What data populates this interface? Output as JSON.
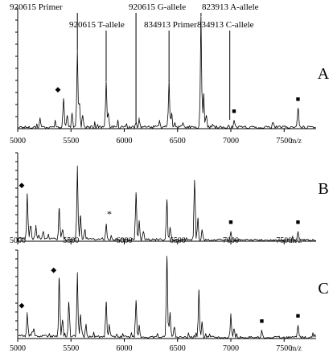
{
  "annotations": [
    {
      "text": "920615 Primer",
      "mz": 5560
    },
    {
      "text": "920615 T-allele",
      "mz": 5830
    },
    {
      "text": "920615 G-allele",
      "mz": 6110
    },
    {
      "text": "834913 Primer",
      "mz": 6420
    },
    {
      "text": "823913  A-allele",
      "mz": 6720
    },
    {
      "text": "834913 C-allele",
      "mz": 6990
    }
  ],
  "chart_data": [
    {
      "type": "line",
      "panel": "A",
      "x_unit": "m/z",
      "xlim": [
        5000,
        7800
      ],
      "x_ticks": [
        "5000",
        "5500",
        "6000",
        "6500",
        "7000",
        "7500"
      ],
      "y_axis_labels": "none",
      "peaks": [
        {
          "mz": 5210,
          "rel": 0.08
        },
        {
          "mz": 5430,
          "rel": 0.24
        },
        {
          "mz": 5465,
          "rel": 0.1
        },
        {
          "mz": 5510,
          "rel": 0.12
        },
        {
          "mz": 5560,
          "rel": 0.64
        },
        {
          "mz": 5580,
          "rel": 0.2
        },
        {
          "mz": 5610,
          "rel": 0.1
        },
        {
          "mz": 5830,
          "rel": 0.38
        },
        {
          "mz": 5850,
          "rel": 0.12
        },
        {
          "mz": 6110,
          "rel": 0.04
        },
        {
          "mz": 6140,
          "rel": 0.06
        },
        {
          "mz": 6330,
          "rel": 0.06
        },
        {
          "mz": 6420,
          "rel": 0.38
        },
        {
          "mz": 6445,
          "rel": 0.12
        },
        {
          "mz": 6550,
          "rel": 0.04
        },
        {
          "mz": 6720,
          "rel": 0.92
        },
        {
          "mz": 6745,
          "rel": 0.28
        },
        {
          "mz": 6770,
          "rel": 0.1
        },
        {
          "mz": 7030,
          "rel": 0.06
        },
        {
          "mz": 7630,
          "rel": 0.16
        }
      ],
      "markers": [
        {
          "symbol": "◆",
          "mz": 5430
        },
        {
          "symbol": "■",
          "mz": 7030
        },
        {
          "symbol": "■",
          "mz": 7630
        }
      ]
    },
    {
      "type": "line",
      "panel": "B",
      "x_unit": "m/z",
      "xlim": [
        5000,
        7800
      ],
      "x_ticks": [
        "5000",
        "5500",
        "6000",
        "6500",
        "7000",
        "7500"
      ],
      "y_axis_labels": "none",
      "peaks": [
        {
          "mz": 5090,
          "rel": 0.52
        },
        {
          "mz": 5120,
          "rel": 0.16
        },
        {
          "mz": 5170,
          "rel": 0.14
        },
        {
          "mz": 5240,
          "rel": 0.1
        },
        {
          "mz": 5390,
          "rel": 0.36
        },
        {
          "mz": 5420,
          "rel": 0.12
        },
        {
          "mz": 5560,
          "rel": 0.82
        },
        {
          "mz": 5590,
          "rel": 0.28
        },
        {
          "mz": 5630,
          "rel": 0.12
        },
        {
          "mz": 5830,
          "rel": 0.18
        },
        {
          "mz": 6110,
          "rel": 0.54
        },
        {
          "mz": 6140,
          "rel": 0.22
        },
        {
          "mz": 6180,
          "rel": 0.1
        },
        {
          "mz": 6400,
          "rel": 0.46
        },
        {
          "mz": 6430,
          "rel": 0.14
        },
        {
          "mz": 6660,
          "rel": 0.68
        },
        {
          "mz": 6690,
          "rel": 0.24
        },
        {
          "mz": 6730,
          "rel": 0.12
        },
        {
          "mz": 7000,
          "rel": 0.1
        },
        {
          "mz": 7630,
          "rel": 0.1
        }
      ],
      "markers": [
        {
          "symbol": "◆",
          "mz": 5090
        },
        {
          "symbol": "*",
          "mz": 5860
        },
        {
          "symbol": "■",
          "mz": 7000
        },
        {
          "symbol": "■",
          "mz": 7630
        }
      ]
    },
    {
      "type": "line",
      "panel": "C",
      "x_unit": "m/z",
      "xlim": [
        5000,
        7800
      ],
      "x_ticks": [
        "5000",
        "5500",
        "6000",
        "6500",
        "7000",
        "7500"
      ],
      "y_axis_labels": "none",
      "peaks": [
        {
          "mz": 5090,
          "rel": 0.26
        },
        {
          "mz": 5150,
          "rel": 0.1
        },
        {
          "mz": 5390,
          "rel": 0.66
        },
        {
          "mz": 5420,
          "rel": 0.2
        },
        {
          "mz": 5480,
          "rel": 0.4
        },
        {
          "mz": 5560,
          "rel": 0.72
        },
        {
          "mz": 5590,
          "rel": 0.26
        },
        {
          "mz": 5640,
          "rel": 0.14
        },
        {
          "mz": 5830,
          "rel": 0.4
        },
        {
          "mz": 5860,
          "rel": 0.14
        },
        {
          "mz": 6110,
          "rel": 0.42
        },
        {
          "mz": 6140,
          "rel": 0.14
        },
        {
          "mz": 6400,
          "rel": 0.92
        },
        {
          "mz": 6430,
          "rel": 0.28
        },
        {
          "mz": 6470,
          "rel": 0.12
        },
        {
          "mz": 6700,
          "rel": 0.54
        },
        {
          "mz": 6730,
          "rel": 0.18
        },
        {
          "mz": 7000,
          "rel": 0.26
        },
        {
          "mz": 7030,
          "rel": 0.1
        },
        {
          "mz": 7290,
          "rel": 0.08
        },
        {
          "mz": 7630,
          "rel": 0.14
        }
      ],
      "markers": [
        {
          "symbol": "◆",
          "mz": 5090
        },
        {
          "symbol": "◆",
          "mz": 5390
        },
        {
          "symbol": "■",
          "mz": 7290
        },
        {
          "symbol": "■",
          "mz": 7630
        }
      ]
    }
  ]
}
